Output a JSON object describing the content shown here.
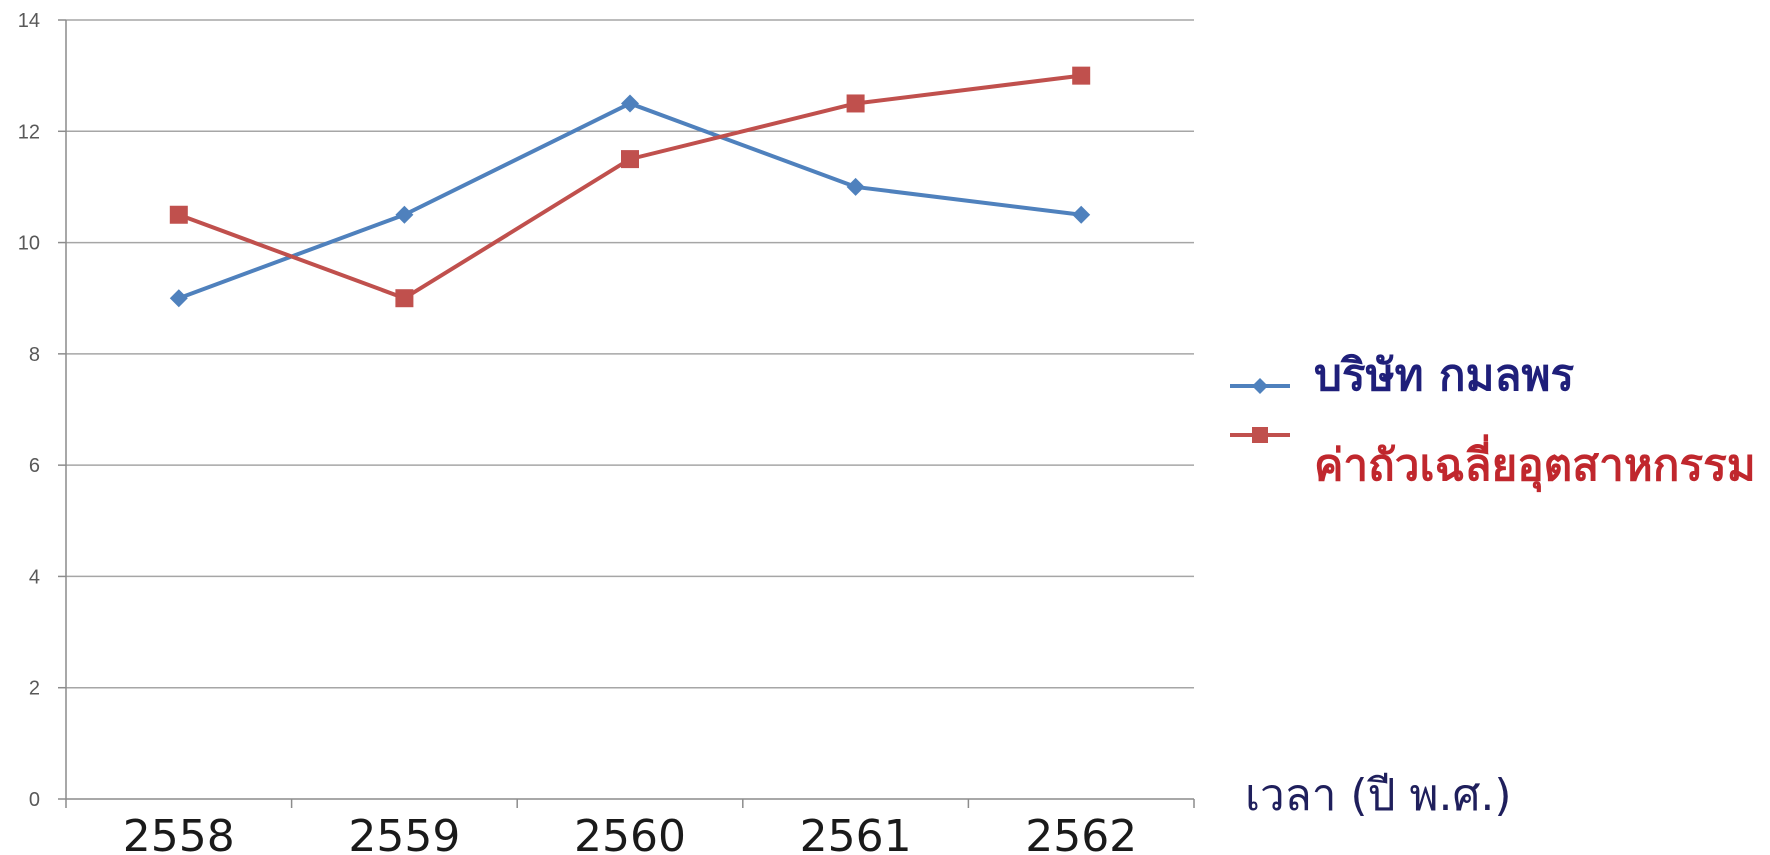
{
  "chart_data": {
    "type": "line",
    "categories": [
      "2558",
      "2559",
      "2560",
      "2561",
      "2562"
    ],
    "series": [
      {
        "name": "บริษัท กมลพร",
        "values": [
          9,
          10.5,
          12.5,
          11,
          10.5
        ],
        "color": "#4f81bd",
        "marker": "diamond"
      },
      {
        "name": "ค่าถัวเฉลี่ยอุตสาหกรรม",
        "values": [
          10.5,
          9,
          11.5,
          12.5,
          13
        ],
        "color": "#c0504d",
        "marker": "square"
      }
    ],
    "ylim": [
      0,
      14
    ],
    "yticks": [
      0,
      2,
      4,
      6,
      8,
      10,
      12,
      14
    ],
    "xlabel": "เวลา (ปี พ.ศ.)",
    "ylabel": "",
    "title": "",
    "grid": true,
    "legend_position": "right",
    "label_color_series1": "#1f1f7a",
    "label_color_series2": "#c0272d"
  }
}
